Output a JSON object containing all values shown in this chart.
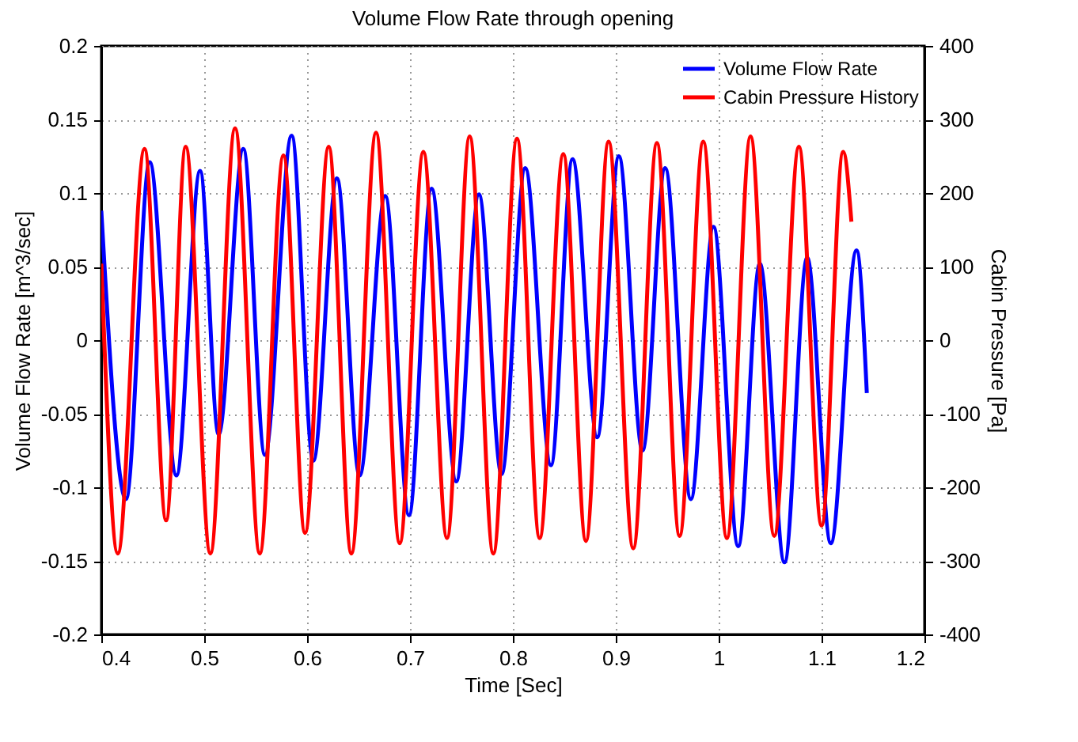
{
  "chart_data": {
    "type": "line",
    "title": "Volume Flow Rate through opening",
    "xlabel": "Time [Sec]",
    "ylabel": "Volume Flow Rate [m^3/sec]",
    "y2label": "Cabin Pressure [Pa]",
    "xlim": [
      0.4,
      1.2
    ],
    "xticks": [
      0.4,
      0.5,
      0.6,
      0.7,
      0.8,
      0.9,
      1,
      1.1,
      1.2
    ],
    "ylim": [
      -0.2,
      0.2
    ],
    "yticks": [
      -0.2,
      -0.15,
      -0.1,
      -0.05,
      0,
      0.05,
      0.1,
      0.15,
      0.2
    ],
    "y2lim": [
      -400,
      400
    ],
    "y2ticks": [
      -400,
      -300,
      -200,
      -100,
      0,
      100,
      200,
      300,
      400
    ],
    "grid": true,
    "legend": "top right",
    "line_style": "solid",
    "marker": "none",
    "series": [
      {
        "name": "Volume Flow Rate",
        "color": "#0000ff",
        "x": [
          0.4,
          0.424,
          0.447,
          0.473,
          0.496,
          0.514,
          0.538,
          0.559,
          0.585,
          0.606,
          0.629,
          0.651,
          0.676,
          0.699,
          0.721,
          0.745,
          0.767,
          0.789,
          0.812,
          0.837,
          0.858,
          0.882,
          0.903,
          0.926,
          0.948,
          0.973,
          0.995,
          1.019,
          1.04,
          1.064,
          1.086,
          1.109,
          1.134,
          1.144
        ],
        "values": [
          0.088,
          -0.108,
          0.121,
          -0.092,
          0.115,
          -0.064,
          0.13,
          -0.078,
          0.139,
          -0.082,
          0.11,
          -0.092,
          0.098,
          -0.119,
          0.103,
          -0.096,
          0.099,
          -0.091,
          0.117,
          -0.085,
          0.123,
          -0.066,
          0.125,
          -0.075,
          0.117,
          -0.108,
          0.077,
          -0.14,
          0.052,
          -0.151,
          0.056,
          -0.138,
          0.061,
          -0.036
        ]
      },
      {
        "name": "Cabin Pressure History",
        "color": "#ff0000",
        "axis": "y2",
        "x": [
          0.4,
          0.416,
          0.442,
          0.463,
          0.482,
          0.506,
          0.53,
          0.554,
          0.577,
          0.598,
          0.621,
          0.643,
          0.667,
          0.69,
          0.713,
          0.736,
          0.758,
          0.781,
          0.804,
          0.826,
          0.849,
          0.871,
          0.893,
          0.917,
          0.94,
          0.962,
          0.985,
          1.008,
          1.031,
          1.054,
          1.078,
          1.1,
          1.121,
          1.129
        ],
        "values": [
          104,
          -290,
          260,
          -245,
          263,
          -290,
          288,
          -290,
          251,
          -262,
          263,
          -290,
          282,
          -276,
          256,
          -269,
          277,
          -290,
          274,
          -269,
          253,
          -273,
          270,
          -283,
          268,
          -266,
          270,
          -269,
          277,
          -266,
          263,
          -252,
          256,
          161
        ]
      }
    ]
  }
}
